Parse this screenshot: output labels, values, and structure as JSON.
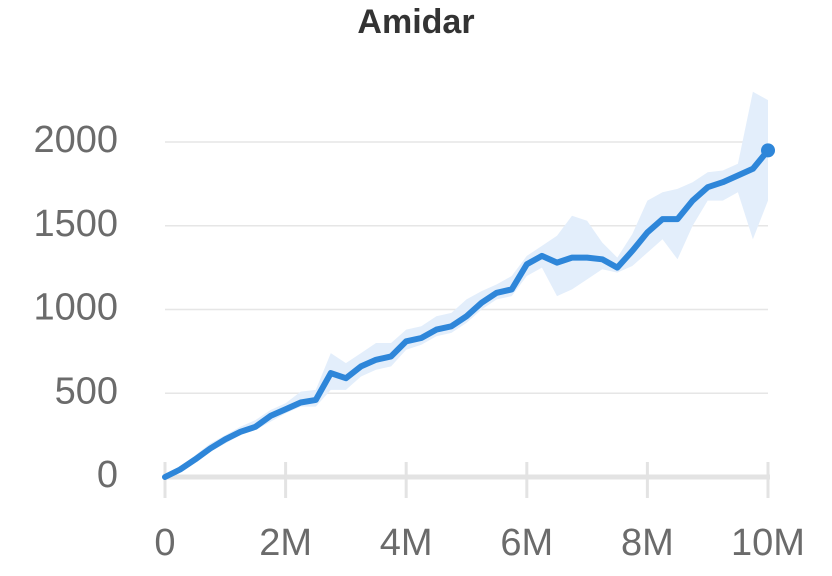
{
  "chart_data": {
    "type": "line",
    "title": "Amidar",
    "x": [
      0,
      250000,
      500000,
      750000,
      1000000,
      1250000,
      1500000,
      1750000,
      2000000,
      2250000,
      2500000,
      2750000,
      3000000,
      3250000,
      3500000,
      3750000,
      4000000,
      4250000,
      4500000,
      4750000,
      5000000,
      5250000,
      5500000,
      5750000,
      6000000,
      6250000,
      6500000,
      6750000,
      7000000,
      7250000,
      7500000,
      7750000,
      8000000,
      8250000,
      8500000,
      8750000,
      9000000,
      9250000,
      9500000,
      9750000,
      10000000
    ],
    "series": [
      {
        "color": "#2e86d9",
        "band_color": "#e3eefb",
        "values": [
          0,
          45,
          105,
          170,
          225,
          270,
          300,
          365,
          405,
          445,
          460,
          620,
          590,
          660,
          700,
          720,
          810,
          830,
          880,
          900,
          960,
          1040,
          1100,
          1120,
          1270,
          1320,
          1280,
          1310,
          1310,
          1300,
          1250,
          1350,
          1460,
          1540,
          1540,
          1650,
          1730,
          1760,
          1800,
          1840,
          1950
        ],
        "upper": [
          0,
          60,
          130,
          200,
          250,
          300,
          340,
          400,
          440,
          510,
          520,
          740,
          680,
          740,
          800,
          800,
          880,
          900,
          960,
          980,
          1060,
          1110,
          1150,
          1200,
          1320,
          1380,
          1440,
          1560,
          1530,
          1400,
          1310,
          1450,
          1650,
          1700,
          1720,
          1760,
          1820,
          1830,
          1870,
          2300,
          2250
        ],
        "lower": [
          0,
          30,
          90,
          150,
          200,
          250,
          280,
          330,
          380,
          420,
          420,
          520,
          520,
          600,
          640,
          660,
          760,
          790,
          840,
          860,
          920,
          1000,
          1060,
          1080,
          1200,
          1250,
          1080,
          1120,
          1180,
          1240,
          1220,
          1260,
          1340,
          1420,
          1300,
          1500,
          1650,
          1650,
          1700,
          1420,
          1650
        ]
      }
    ],
    "xlim": [
      0,
      10000000
    ],
    "ylim": [
      0,
      2300
    ],
    "xticks": [
      0,
      {
        "value": 2000000,
        "label": "2M"
      },
      {
        "value": 4000000,
        "label": "4M"
      },
      {
        "value": 6000000,
        "label": "6M"
      },
      {
        "value": 8000000,
        "label": "8M"
      },
      {
        "value": 10000000,
        "label": "10M"
      }
    ],
    "yticks": [
      0,
      500,
      1000,
      1500,
      2000
    ],
    "grid": true
  }
}
